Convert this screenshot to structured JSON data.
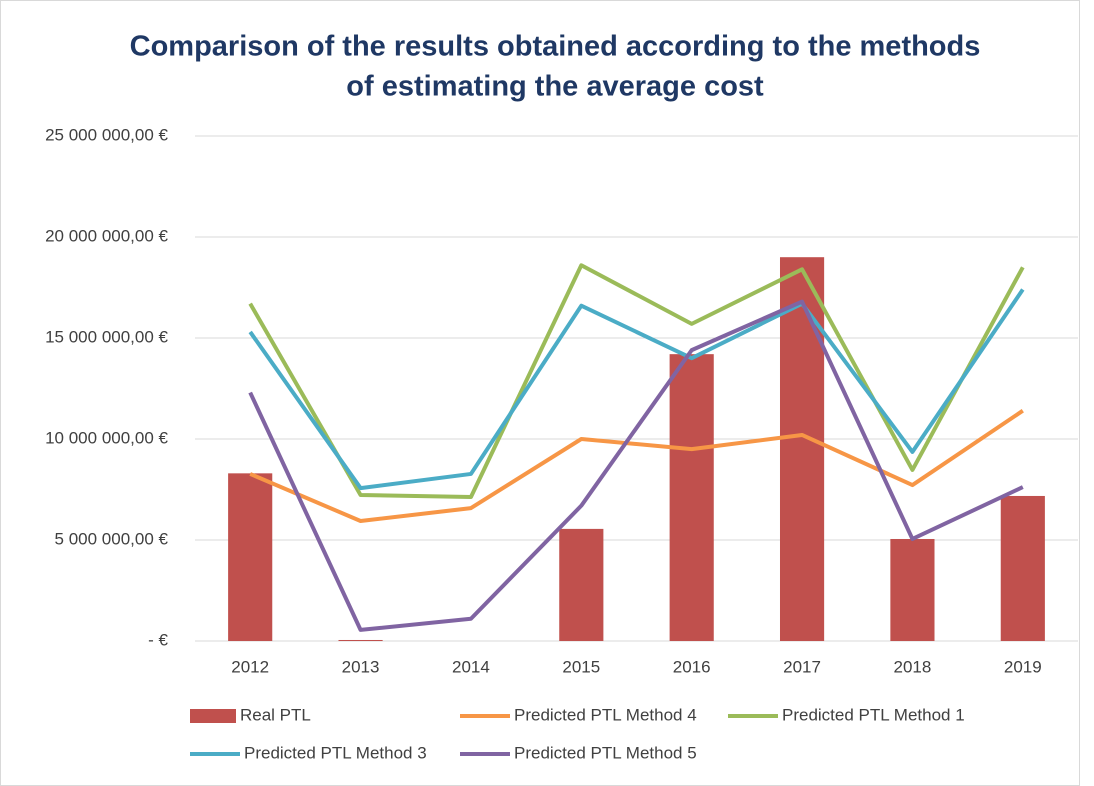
{
  "chart_data": {
    "type": "combo",
    "title": [
      "Comparison of the results obtained according to the methods",
      "of estimating the average cost"
    ],
    "categories": [
      "2012",
      "2013",
      "2014",
      "2015",
      "2016",
      "2017",
      "2018",
      "2019"
    ],
    "series": [
      {
        "name": "Real PTL",
        "type": "bar",
        "color": "#c0504d",
        "values": [
          8300000,
          50000,
          0,
          5550000,
          14200000,
          19000000,
          5050000,
          7180000
        ]
      },
      {
        "name": "Predicted PTL Method 4",
        "type": "line",
        "color": "#f79646",
        "values": [
          8270000,
          5940000,
          6580000,
          10000000,
          9500000,
          10200000,
          7720000,
          11400000
        ]
      },
      {
        "name": "Predicted PTL Method 1",
        "type": "line",
        "color": "#9bbb59",
        "values": [
          16700000,
          7230000,
          7130000,
          18600000,
          15700000,
          18400000,
          8470000,
          18500000
        ]
      },
      {
        "name": "Predicted PTL Method 3",
        "type": "line",
        "color": "#4bacc6",
        "values": [
          15300000,
          7570000,
          8270000,
          16600000,
          14000000,
          16700000,
          9360000,
          17400000
        ]
      },
      {
        "name": "Predicted PTL Method 5",
        "type": "line",
        "color": "#8064a2",
        "values": [
          12300000,
          550000,
          1100000,
          6700000,
          14400000,
          16800000,
          5050000,
          7620000
        ]
      }
    ],
    "ylim": [
      0,
      25000000
    ],
    "yticks": [
      {
        "value": 0,
        "label": "-  €"
      },
      {
        "value": 5000000,
        "label": "5 000 000,00 €"
      },
      {
        "value": 10000000,
        "label": "10 000 000,00 €"
      },
      {
        "value": 15000000,
        "label": "15 000 000,00 €"
      },
      {
        "value": 20000000,
        "label": "20 000 000,00 €"
      },
      {
        "value": 25000000,
        "label": "25 000 000,00 €"
      }
    ],
    "grid": true,
    "legend": "bottom"
  }
}
